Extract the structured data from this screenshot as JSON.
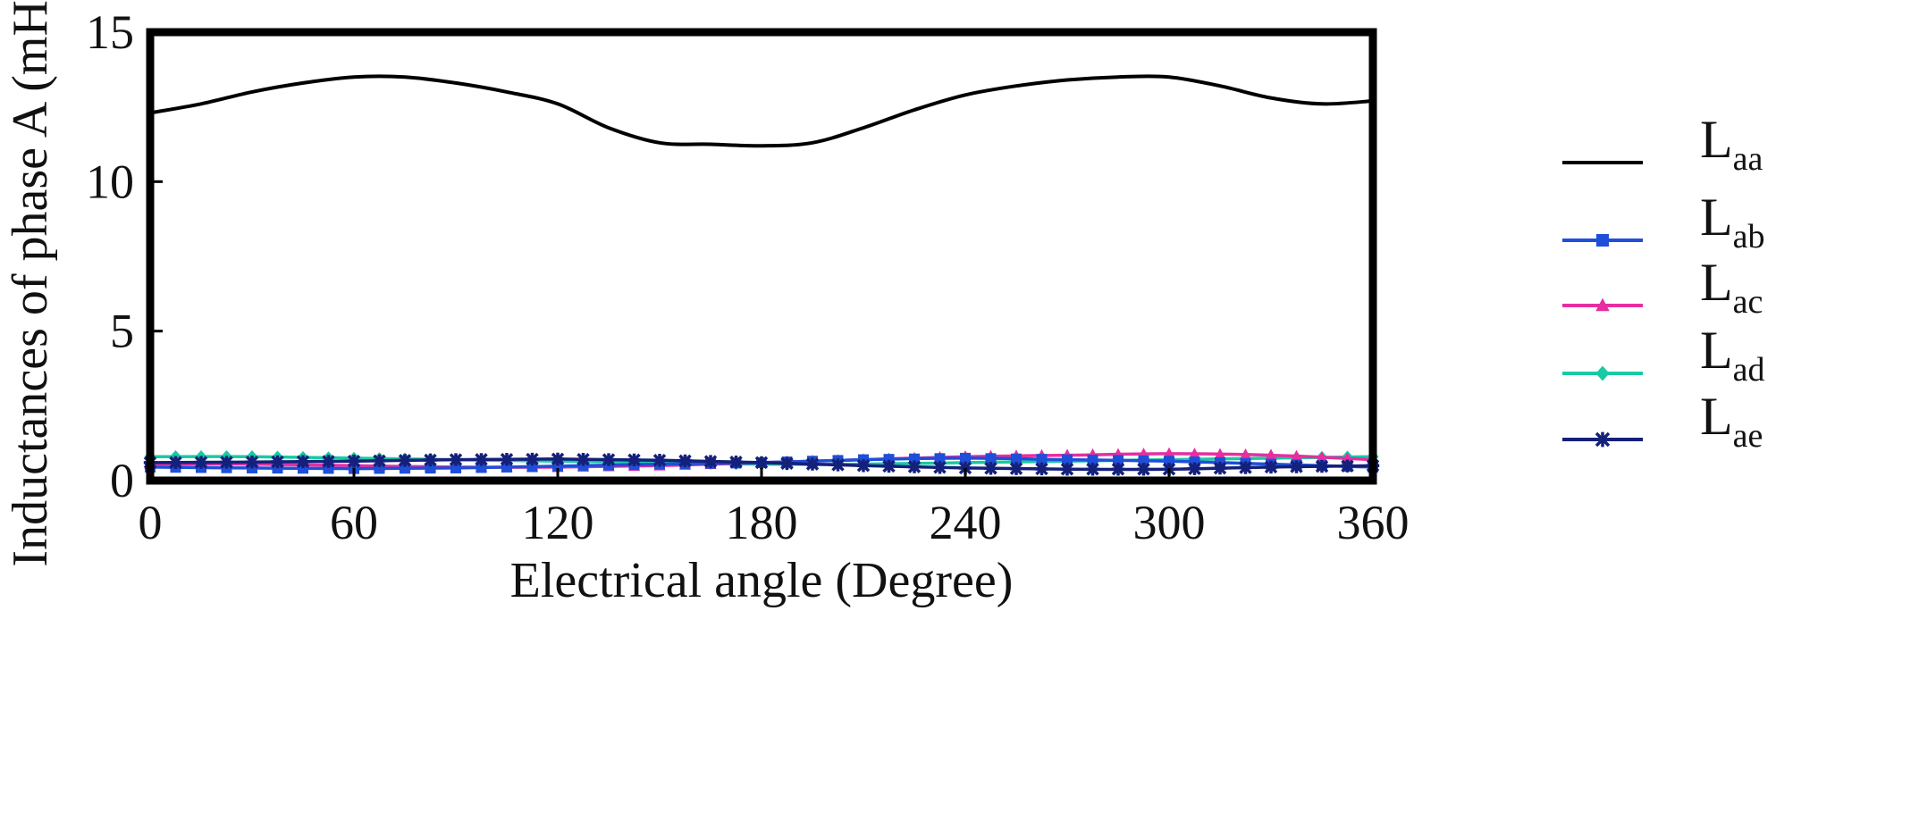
{
  "chart_data": {
    "type": "line",
    "title": "",
    "xlabel": "Electrical angle (Degree)",
    "ylabel": "Inductances of phase A (mH)",
    "xlim": [
      0,
      360
    ],
    "ylim": [
      0,
      15
    ],
    "xticks": [
      0,
      60,
      120,
      180,
      240,
      300,
      360
    ],
    "yticks": [
      0,
      5,
      10,
      15
    ],
    "grid": false,
    "legend_position": "right",
    "series": [
      {
        "name": "L",
        "subscript": "aa",
        "color": "#000000",
        "marker": "none",
        "x": [
          0,
          15,
          30,
          45,
          60,
          75,
          90,
          105,
          120,
          135,
          150,
          165,
          180,
          195,
          210,
          225,
          240,
          255,
          270,
          285,
          300,
          315,
          330,
          345,
          360
        ],
        "y": [
          12.3,
          12.6,
          13.0,
          13.3,
          13.5,
          13.5,
          13.3,
          13.0,
          12.6,
          11.8,
          11.3,
          11.25,
          11.2,
          11.3,
          11.8,
          12.4,
          12.9,
          13.2,
          13.4,
          13.5,
          13.5,
          13.2,
          12.8,
          12.6,
          12.7
        ]
      },
      {
        "name": "L",
        "subscript": "ab",
        "color": "#1f4fd8",
        "marker": "square",
        "x": [
          0,
          30,
          60,
          90,
          120,
          150,
          180,
          210,
          240,
          270,
          300,
          330,
          360
        ],
        "y": [
          0.45,
          0.42,
          0.4,
          0.42,
          0.48,
          0.55,
          0.6,
          0.7,
          0.75,
          0.7,
          0.65,
          0.55,
          0.45
        ]
      },
      {
        "name": "L",
        "subscript": "ac",
        "color": "#e62ea0",
        "marker": "triangle",
        "x": [
          0,
          30,
          60,
          90,
          120,
          150,
          180,
          210,
          240,
          270,
          300,
          330,
          360
        ],
        "y": [
          0.55,
          0.55,
          0.5,
          0.45,
          0.45,
          0.5,
          0.6,
          0.7,
          0.8,
          0.85,
          0.9,
          0.85,
          0.7
        ]
      },
      {
        "name": "L",
        "subscript": "ad",
        "color": "#19c9a5",
        "marker": "diamond",
        "x": [
          0,
          30,
          60,
          90,
          120,
          150,
          180,
          210,
          240,
          270,
          300,
          330,
          360
        ],
        "y": [
          0.8,
          0.8,
          0.75,
          0.7,
          0.65,
          0.6,
          0.55,
          0.55,
          0.6,
          0.65,
          0.7,
          0.75,
          0.8
        ]
      },
      {
        "name": "L",
        "subscript": "ae",
        "color": "#14207a",
        "marker": "star",
        "x": [
          0,
          30,
          60,
          90,
          120,
          150,
          180,
          210,
          240,
          270,
          300,
          330,
          360
        ],
        "y": [
          0.6,
          0.62,
          0.65,
          0.7,
          0.72,
          0.68,
          0.6,
          0.5,
          0.42,
          0.38,
          0.38,
          0.45,
          0.5
        ]
      }
    ]
  }
}
